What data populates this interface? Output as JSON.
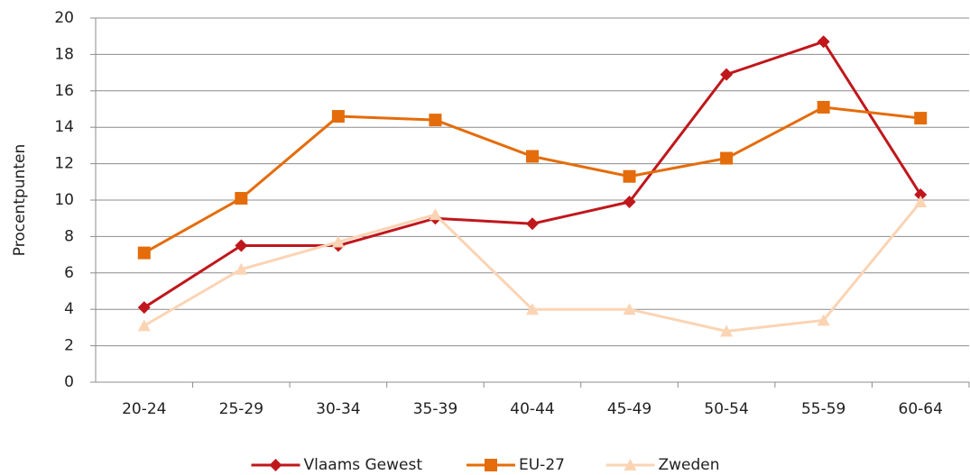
{
  "chart_data": {
    "type": "line",
    "y_label": "Procentpunten",
    "categories": [
      "20-24",
      "25-29",
      "30-34",
      "35-39",
      "40-44",
      "45-49",
      "50-54",
      "55-59",
      "60-64"
    ],
    "series": [
      {
        "name": "Vlaams Gewest",
        "color": "#c0171c",
        "marker": "diamond",
        "values": [
          4.1,
          7.5,
          7.5,
          9.0,
          8.7,
          9.9,
          16.9,
          18.7,
          10.3
        ]
      },
      {
        "name": "EU-27",
        "color": "#e46c0a",
        "marker": "square",
        "values": [
          7.1,
          10.1,
          14.6,
          14.4,
          12.4,
          11.3,
          12.3,
          15.1,
          14.5
        ]
      },
      {
        "name": "Zweden",
        "color": "#fbd4b4",
        "marker": "triangle",
        "values": [
          3.1,
          6.2,
          7.7,
          9.2,
          4.0,
          4.0,
          2.8,
          3.4,
          9.9
        ]
      }
    ],
    "ylim": [
      0,
      20
    ],
    "yticks": [
      0,
      2,
      4,
      6,
      8,
      10,
      12,
      14,
      16,
      18,
      20
    ],
    "grid": true,
    "legend": "bottom"
  }
}
